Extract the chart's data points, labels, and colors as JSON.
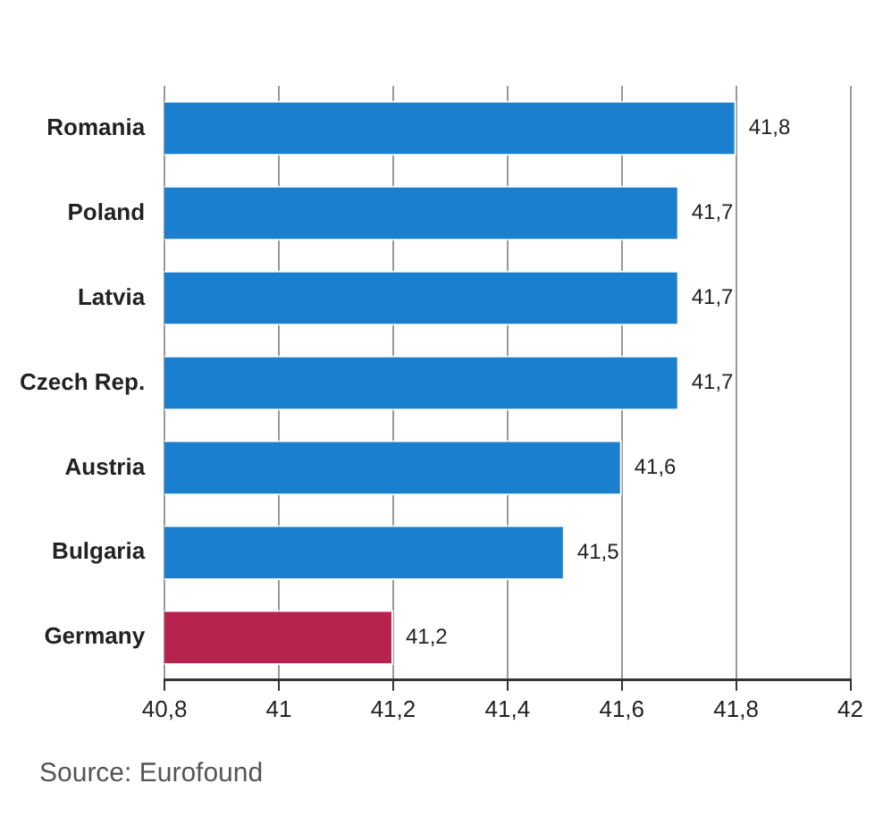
{
  "chart_data": {
    "type": "bar",
    "orientation": "horizontal",
    "categories": [
      "Romania",
      "Poland",
      "Latvia",
      "Czech Rep.",
      "Austria",
      "Bulgaria",
      "Germany"
    ],
    "values": [
      41.8,
      41.7,
      41.7,
      41.7,
      41.6,
      41.5,
      41.2
    ],
    "colors": [
      "#1a7fcf",
      "#1a7fcf",
      "#1a7fcf",
      "#1a7fcf",
      "#1a7fcf",
      "#1a7fcf",
      "#b8234e"
    ],
    "value_labels": [
      "41,8",
      "41,7",
      "41,7",
      "41,7",
      "41,6",
      "41,5",
      "41,2"
    ],
    "xlim": [
      40.8,
      42
    ],
    "xticks": [
      {
        "value": 40.8,
        "label": "40,8"
      },
      41,
      {
        "value": 41.2,
        "label": "41,2"
      },
      {
        "value": 41.4,
        "label": "41,4"
      },
      {
        "value": 41.6,
        "label": "41,6"
      },
      {
        "value": 41.8,
        "label": "41,8"
      },
      42
    ],
    "grid": "x",
    "legend": false,
    "annotations": [
      "Source: Eurofound"
    ]
  }
}
